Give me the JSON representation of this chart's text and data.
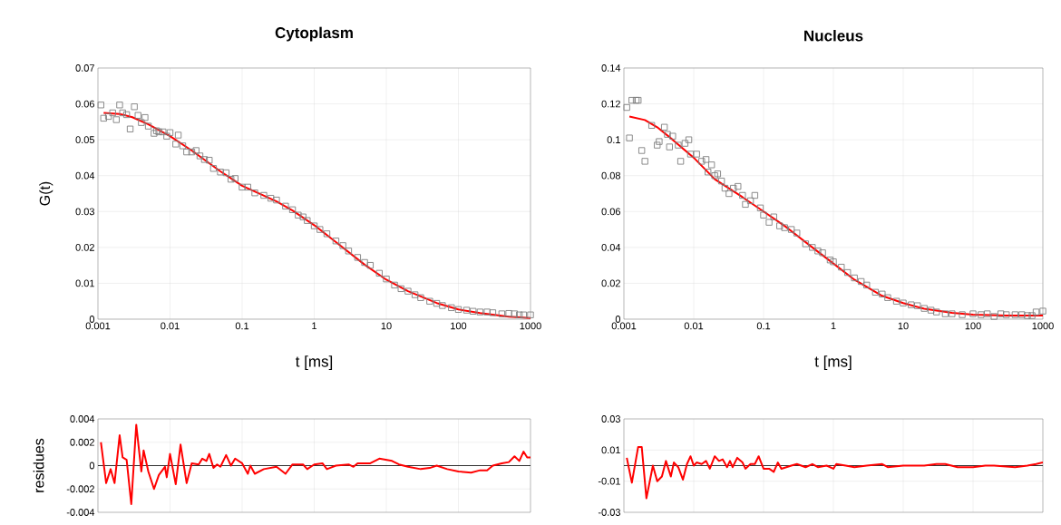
{
  "chart_data": [
    {
      "type": "scatter",
      "title": "Cytoplasm",
      "xlabel": "t [ms]",
      "ylabel": "G(t)",
      "log": "x",
      "grid": true,
      "xlim": [
        0.001,
        1000
      ],
      "xticks": [
        0.001,
        0.01,
        0.1,
        1,
        10,
        100,
        1000
      ],
      "ylim": [
        0,
        0.07
      ],
      "yticks": [
        0,
        0.01,
        0.02,
        0.03,
        0.04,
        0.05,
        0.06,
        0.07
      ],
      "series": [
        {
          "marker": "square",
          "color": "#7f7f7f",
          "x": [
            0.0011,
            0.0012,
            0.0014,
            0.0016,
            0.0018,
            0.002,
            0.0022,
            0.0025,
            0.0028,
            0.0032,
            0.0036,
            0.004,
            0.0045,
            0.005,
            0.006,
            0.0065,
            0.007,
            0.008,
            0.009,
            0.01,
            0.012,
            0.013,
            0.015,
            0.017,
            0.02,
            0.023,
            0.026,
            0.03,
            0.035,
            0.04,
            0.05,
            0.06,
            0.07,
            0.08,
            0.1,
            0.12,
            0.15,
            0.2,
            0.25,
            0.3,
            0.4,
            0.5,
            0.6,
            0.7,
            0.8,
            1,
            1.2,
            1.5,
            2,
            2.5,
            3,
            4,
            5,
            6,
            8,
            10,
            13,
            16,
            20,
            25,
            30,
            40,
            50,
            60,
            80,
            100,
            130,
            160,
            200,
            250,
            300,
            400,
            500,
            600,
            700,
            800,
            1000
          ],
          "values": [
            0.0597,
            0.056,
            0.0565,
            0.0575,
            0.0556,
            0.0597,
            0.0575,
            0.057,
            0.053,
            0.0592,
            0.0568,
            0.0548,
            0.0562,
            0.0538,
            0.0518,
            0.0525,
            0.0522,
            0.0522,
            0.051,
            0.052,
            0.0488,
            0.0513,
            0.0483,
            0.0466,
            0.0466,
            0.047,
            0.0455,
            0.0445,
            0.0443,
            0.042,
            0.041,
            0.0408,
            0.039,
            0.0392,
            0.0368,
            0.0368,
            0.0352,
            0.0345,
            0.0337,
            0.0332,
            0.0315,
            0.0305,
            0.029,
            0.0285,
            0.0275,
            0.026,
            0.025,
            0.0238,
            0.0218,
            0.0205,
            0.019,
            0.0172,
            0.0158,
            0.015,
            0.0128,
            0.0112,
            0.0095,
            0.0085,
            0.0078,
            0.0068,
            0.006,
            0.005,
            0.0044,
            0.0038,
            0.0032,
            0.0027,
            0.0025,
            0.0022,
            0.002,
            0.002,
            0.0018,
            0.0015,
            0.0016,
            0.0015,
            0.0012,
            0.0012,
            0.0012
          ]
        },
        {
          "type": "line",
          "color": "#ff0000",
          "x": [
            0.0012,
            0.002,
            0.003,
            0.005,
            0.01,
            0.02,
            0.05,
            0.1,
            0.3,
            0.5,
            1,
            2,
            5,
            10,
            20,
            50,
            100,
            200,
            500,
            1000
          ],
          "values": [
            0.0575,
            0.0572,
            0.0563,
            0.0543,
            0.051,
            0.047,
            0.0412,
            0.0372,
            0.0328,
            0.0303,
            0.0262,
            0.0215,
            0.0152,
            0.011,
            0.0078,
            0.0045,
            0.0027,
            0.0017,
            0.0007,
            0.0003
          ]
        }
      ]
    },
    {
      "type": "scatter",
      "title": "Nucleus",
      "xlabel": "t [ms]",
      "log": "x",
      "grid": true,
      "xlim": [
        0.001,
        1000
      ],
      "xticks": [
        0.001,
        0.01,
        0.1,
        1,
        10,
        100,
        1000
      ],
      "ylim": [
        0,
        0.14
      ],
      "yticks": [
        0,
        0.02,
        0.04,
        0.06,
        0.08,
        0.1,
        0.12,
        0.14
      ],
      "series": [
        {
          "marker": "square",
          "color": "#7f7f7f",
          "x": [
            0.0011,
            0.0012,
            0.0013,
            0.0015,
            0.0016,
            0.0018,
            0.002,
            0.0025,
            0.003,
            0.0032,
            0.0038,
            0.0042,
            0.0045,
            0.005,
            0.006,
            0.0065,
            0.0075,
            0.0085,
            0.009,
            0.011,
            0.013,
            0.015,
            0.016,
            0.018,
            0.02,
            0.022,
            0.025,
            0.028,
            0.032,
            0.037,
            0.043,
            0.05,
            0.055,
            0.065,
            0.075,
            0.09,
            0.1,
            0.12,
            0.14,
            0.17,
            0.2,
            0.25,
            0.3,
            0.4,
            0.5,
            0.6,
            0.7,
            0.9,
            1,
            1.3,
            1.6,
            2,
            2.5,
            3,
            4,
            5,
            6,
            8,
            10,
            13,
            16,
            20,
            25,
            30,
            40,
            50,
            70,
            100,
            130,
            160,
            200,
            250,
            300,
            400,
            500,
            600,
            700,
            800,
            1000
          ],
          "values": [
            0.118,
            0.101,
            0.122,
            0.122,
            0.122,
            0.094,
            0.088,
            0.108,
            0.097,
            0.099,
            0.107,
            0.103,
            0.096,
            0.102,
            0.097,
            0.088,
            0.098,
            0.1,
            0.092,
            0.092,
            0.088,
            0.089,
            0.082,
            0.086,
            0.08,
            0.081,
            0.077,
            0.073,
            0.07,
            0.073,
            0.074,
            0.069,
            0.064,
            0.066,
            0.069,
            0.062,
            0.058,
            0.054,
            0.057,
            0.052,
            0.051,
            0.05,
            0.048,
            0.042,
            0.04,
            0.038,
            0.037,
            0.033,
            0.032,
            0.029,
            0.026,
            0.023,
            0.021,
            0.019,
            0.015,
            0.014,
            0.012,
            0.01,
            0.009,
            0.008,
            0.0075,
            0.006,
            0.005,
            0.004,
            0.003,
            0.003,
            0.0025,
            0.003,
            0.0025,
            0.003,
            0.0015,
            0.003,
            0.0025,
            0.0025,
            0.0025,
            0.002,
            0.002,
            0.004,
            0.0045
          ]
        },
        {
          "type": "line",
          "color": "#ff0000",
          "x": [
            0.0012,
            0.002,
            0.003,
            0.005,
            0.01,
            0.02,
            0.05,
            0.1,
            0.2,
            0.5,
            1,
            2,
            5,
            10,
            20,
            50,
            100,
            300,
            1000
          ],
          "values": [
            0.113,
            0.111,
            0.107,
            0.1,
            0.09,
            0.078,
            0.068,
            0.06,
            0.052,
            0.04,
            0.031,
            0.022,
            0.013,
            0.009,
            0.0058,
            0.0035,
            0.0025,
            0.002,
            0.002
          ]
        }
      ]
    },
    {
      "type": "line",
      "ylabel": "residues",
      "log": "x",
      "grid": true,
      "tick_labels": "y",
      "xlim": [
        0.001,
        1000
      ],
      "xticks": [
        0.001,
        0.01,
        0.1,
        1,
        10,
        100,
        1000
      ],
      "ylim": [
        -0.004,
        0.004
      ],
      "yticks": [
        -0.004,
        -0.002,
        0,
        0.002,
        0.004
      ],
      "ref_lines": [
        {
          "axis": "y",
          "value": 0,
          "color": "#000000"
        }
      ],
      "series": [
        {
          "color": "#ff0000",
          "x": [
            0.0011,
            0.0013,
            0.0015,
            0.0017,
            0.002,
            0.0022,
            0.0025,
            0.0029,
            0.0034,
            0.004,
            0.0043,
            0.005,
            0.006,
            0.007,
            0.0085,
            0.009,
            0.01,
            0.012,
            0.014,
            0.017,
            0.02,
            0.025,
            0.028,
            0.032,
            0.035,
            0.04,
            0.045,
            0.05,
            0.06,
            0.07,
            0.08,
            0.1,
            0.12,
            0.13,
            0.15,
            0.2,
            0.3,
            0.4,
            0.5,
            0.7,
            0.8,
            1,
            1.3,
            1.5,
            2,
            3,
            3.5,
            4,
            6,
            8,
            12,
            15,
            20,
            30,
            40,
            50,
            70,
            100,
            150,
            200,
            250,
            300,
            400,
            500,
            600,
            700,
            800,
            900,
            1000
          ],
          "values": [
            0.002,
            -0.0015,
            -0.0003,
            -0.0015,
            0.0026,
            0.0007,
            0.0005,
            -0.0033,
            0.0035,
            -0.0005,
            0.0013,
            -0.0005,
            -0.002,
            -0.0008,
            -0.0001,
            -0.001,
            0.001,
            -0.0016,
            0.0018,
            -0.0015,
            0.0002,
            0.0001,
            0.0006,
            0.0004,
            0.001,
            -0.0002,
            0.0001,
            -0.0001,
            0.0009,
            0,
            0.0006,
            0.0002,
            -0.0007,
            0,
            -0.0007,
            -0.0003,
            -0.0001,
            -0.0007,
            0.0001,
            0.0001,
            -0.0003,
            0.0001,
            0.0002,
            -0.0003,
            0,
            0.0001,
            -0.0001,
            0.0002,
            0.0002,
            0.0006,
            0.0004,
            0.0001,
            -0.0001,
            -0.0003,
            -0.0002,
            0,
            -0.0003,
            -0.0005,
            -0.0006,
            -0.0004,
            -0.0004,
            0,
            0.0002,
            0.0003,
            0.0008,
            0.0004,
            0.0012,
            0.0007,
            0.0007
          ]
        }
      ]
    },
    {
      "type": "line",
      "log": "x",
      "grid": true,
      "tick_labels": "y",
      "xlim": [
        0.001,
        1000
      ],
      "xticks": [
        0.001,
        0.01,
        0.1,
        1,
        10,
        100,
        1000
      ],
      "ylim": [
        -0.03,
        0.03
      ],
      "yticks": [
        -0.03,
        -0.01,
        0.01,
        0.03
      ],
      "ref_lines": [
        {
          "axis": "y",
          "value": 0,
          "color": "#000000"
        }
      ],
      "series": [
        {
          "color": "#ff0000",
          "x": [
            0.0011,
            0.0013,
            0.0016,
            0.0018,
            0.0021,
            0.0026,
            0.003,
            0.0035,
            0.004,
            0.0047,
            0.0052,
            0.006,
            0.007,
            0.008,
            0.009,
            0.01,
            0.011,
            0.013,
            0.015,
            0.017,
            0.02,
            0.023,
            0.026,
            0.03,
            0.033,
            0.036,
            0.042,
            0.05,
            0.055,
            0.065,
            0.075,
            0.085,
            0.1,
            0.12,
            0.14,
            0.16,
            0.18,
            0.25,
            0.3,
            0.4,
            0.5,
            0.6,
            0.8,
            1,
            1.1,
            1.5,
            2,
            3,
            5,
            6,
            10,
            20,
            30,
            40,
            60,
            100,
            150,
            200,
            400,
            600,
            800,
            1000
          ],
          "values": [
            0.005,
            -0.011,
            0.012,
            0.012,
            -0.021,
            0,
            -0.01,
            -0.007,
            0.003,
            -0.007,
            0.002,
            -0.001,
            -0.009,
            0.001,
            0.006,
            0,
            0.002,
            0.001,
            0.003,
            -0.002,
            0.006,
            0.003,
            0.004,
            -0.001,
            0.003,
            -0.001,
            0.005,
            0.002,
            -0.002,
            0.001,
            0.001,
            0.006,
            -0.002,
            -0.002,
            -0.004,
            0.002,
            -0.002,
            0,
            0.001,
            -0.001,
            0.001,
            -0.001,
            0,
            -0.002,
            0.001,
            0,
            -0.001,
            0,
            0.001,
            -0.001,
            0,
            0,
            0.001,
            0.001,
            -0.001,
            -0.001,
            0,
            0,
            -0.001,
            0,
            0.001,
            0.002
          ]
        }
      ]
    }
  ]
}
